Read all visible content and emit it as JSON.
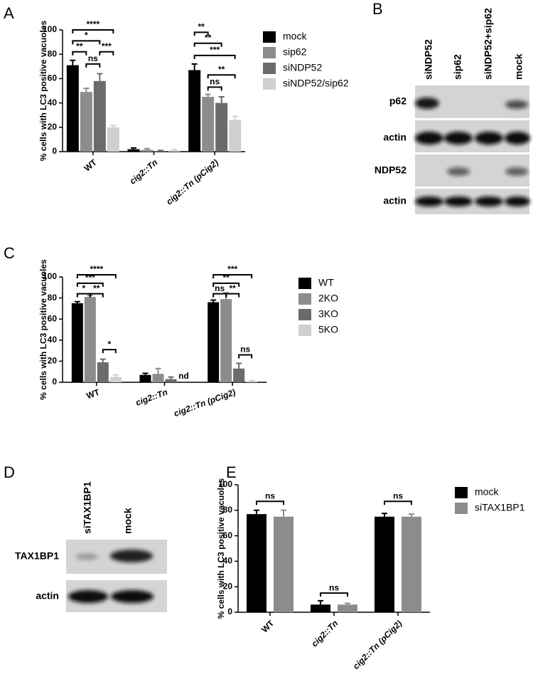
{
  "chart_data": [
    {
      "type": "bar",
      "panel": "A",
      "y_label": "% cells with LC3 positive vacuoles",
      "categories": [
        "WT",
        "cig2::Tn",
        "cig2::Tn (pCig2)"
      ],
      "series": [
        {
          "name": "mock",
          "color": "#000000",
          "values": [
            71,
            2,
            67
          ],
          "errors": [
            4,
            1,
            5
          ]
        },
        {
          "name": "sip62",
          "color": "#8c8c8c",
          "values": [
            49,
            1.5,
            45
          ],
          "errors": [
            3,
            1,
            2
          ]
        },
        {
          "name": "siNDP52",
          "color": "#6b6b6b",
          "values": [
            58,
            0.5,
            40
          ],
          "errors": [
            6,
            0.5,
            5
          ]
        },
        {
          "name": "siNDP52/sip62",
          "color": "#cfcfcf",
          "values": [
            20,
            1,
            26
          ],
          "errors": [
            1.5,
            0.5,
            3
          ]
        }
      ],
      "ylim": [
        0,
        100
      ],
      "yticks": [
        0,
        20,
        40,
        60,
        80,
        100
      ],
      "annotations": [
        {
          "text": "****",
          "group": 0,
          "from": 0,
          "to": 3,
          "y": 100
        },
        {
          "text": "*",
          "group": 0,
          "from": 0,
          "to": 2,
          "y": 91
        },
        {
          "text": "**",
          "group": 0,
          "from": 0,
          "to": 1,
          "y": 82
        },
        {
          "text": "***",
          "group": 0,
          "from": 2,
          "to": 3,
          "y": 82
        },
        {
          "text": "ns",
          "group": 0,
          "from": 1,
          "to": 2,
          "y": 72
        },
        {
          "text": "**",
          "group": 2,
          "from": 0,
          "to": 1,
          "y": 98
        },
        {
          "text": "**",
          "group": 2,
          "from": 0,
          "to": 2,
          "y": 89
        },
        {
          "text": "***",
          "group": 2,
          "from": 0,
          "to": 3,
          "y": 79
        },
        {
          "text": "**",
          "group": 2,
          "from": 1,
          "to": 3,
          "y": 63
        },
        {
          "text": "ns",
          "group": 2,
          "from": 1,
          "to": 2,
          "y": 53
        }
      ]
    },
    {
      "type": "bar",
      "panel": "C",
      "y_label": "% cells with LC3 positive vacuoles",
      "categories": [
        "WT",
        "cig2::Tn",
        "cig2::Tn (pCig2)"
      ],
      "series": [
        {
          "name": "WT",
          "color": "#000000",
          "values": [
            75,
            7,
            76
          ],
          "errors": [
            1.5,
            1.5,
            2
          ]
        },
        {
          "name": "2KO",
          "color": "#8c8c8c",
          "values": [
            81,
            8,
            79
          ],
          "errors": [
            1.5,
            5,
            6
          ]
        },
        {
          "name": "3KO",
          "color": "#6b6b6b",
          "values": [
            19,
            3,
            13
          ],
          "errors": [
            3,
            2,
            5
          ]
        },
        {
          "name": "5KO",
          "color": "#cfcfcf",
          "values": [
            5,
            null,
            1
          ],
          "errors": [
            2,
            null,
            0.5
          ],
          "value_labels": [
            null,
            "nd",
            null
          ]
        }
      ],
      "ylim": [
        0,
        100
      ],
      "yticks": [
        0,
        20,
        40,
        60,
        80,
        100
      ],
      "annotations": [
        {
          "text": "****",
          "group": 0,
          "from": 0,
          "to": 3,
          "y": 102
        },
        {
          "text": "***",
          "group": 0,
          "from": 0,
          "to": 2,
          "y": 94
        },
        {
          "text": "*",
          "group": 0,
          "from": 0,
          "to": 1,
          "y": 84
        },
        {
          "text": "**",
          "group": 0,
          "from": 1,
          "to": 2,
          "y": 84
        },
        {
          "text": "*",
          "group": 0,
          "from": 2,
          "to": 3,
          "y": 31
        },
        {
          "text": "***",
          "group": 2,
          "from": 0,
          "to": 3,
          "y": 102
        },
        {
          "text": "**",
          "group": 2,
          "from": 0,
          "to": 2,
          "y": 94
        },
        {
          "text": "ns",
          "group": 2,
          "from": 0,
          "to": 1,
          "y": 84
        },
        {
          "text": "**",
          "group": 2,
          "from": 1,
          "to": 2,
          "y": 84
        },
        {
          "text": "ns",
          "group": 2,
          "from": 2,
          "to": 3,
          "y": 26
        }
      ]
    },
    {
      "type": "bar",
      "panel": "E",
      "y_label": "% cells with LC3 positive vacuoles",
      "categories": [
        "WT",
        "cig2::Tn",
        "cig2::Tn (pCig2)"
      ],
      "series": [
        {
          "name": "mock",
          "color": "#000000",
          "values": [
            77,
            6,
            75
          ],
          "errors": [
            3,
            3,
            2.5
          ]
        },
        {
          "name": "siTAX1BP1",
          "color": "#8c8c8c",
          "values": [
            75,
            6,
            75
          ],
          "errors": [
            5,
            1,
            2
          ]
        }
      ],
      "ylim": [
        0,
        100
      ],
      "yticks": [
        0,
        20,
        40,
        60,
        80,
        100
      ],
      "annotations": [
        {
          "text": "ns",
          "group": 0,
          "from": 0,
          "to": 1,
          "y": 87
        },
        {
          "text": "ns",
          "group": 1,
          "from": 0,
          "to": 1,
          "y": 15
        },
        {
          "text": "ns",
          "group": 2,
          "from": 0,
          "to": 1,
          "y": 87
        }
      ]
    }
  ],
  "blots": [
    {
      "panel": "B",
      "lanes": [
        "siNDP52",
        "sip62",
        "siNDP52+sip62",
        "mock"
      ],
      "rows": [
        "p62",
        "actin",
        "NDP52",
        "actin"
      ]
    },
    {
      "panel": "D",
      "lanes": [
        "siTAX1BP1",
        "mock"
      ],
      "rows": [
        "TAX1BP1",
        "actin"
      ]
    }
  ]
}
